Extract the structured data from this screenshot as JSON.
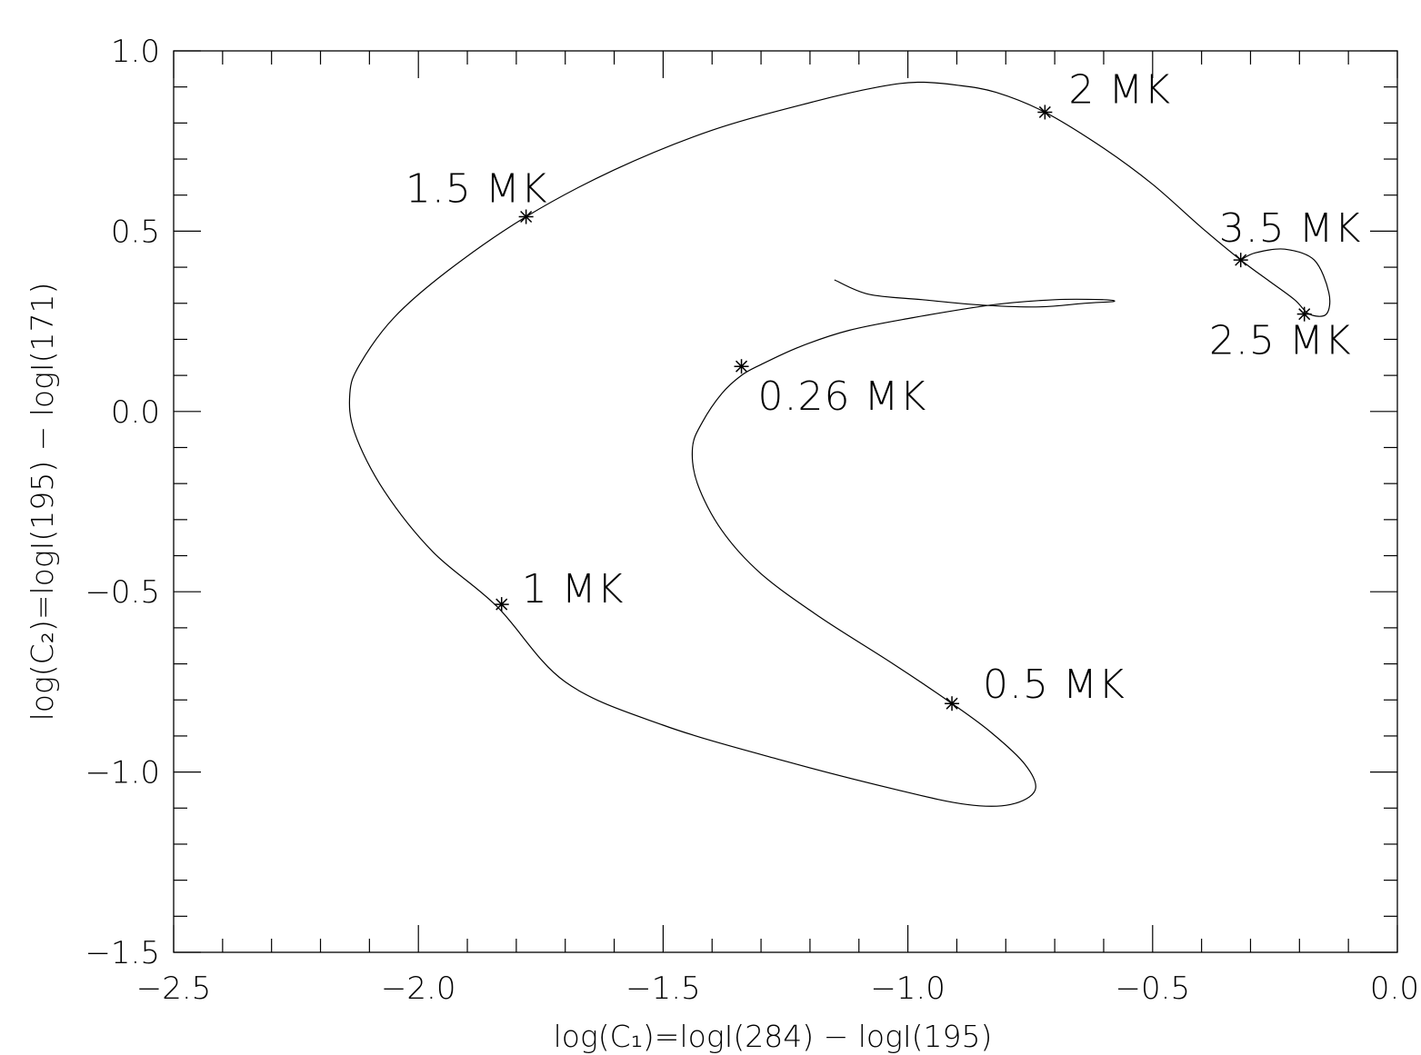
{
  "chart_data": {
    "type": "line",
    "title": "",
    "xlabel": "log(C₁)=logI(284) − logI(195)",
    "ylabel": "log(C₂)=logI(195) − logI(171)",
    "xlim": [
      -2.5,
      0.0
    ],
    "ylim": [
      -1.5,
      1.0
    ],
    "grid": false,
    "x_ticks": [
      -2.5,
      -2.0,
      -1.5,
      -1.0,
      -0.5,
      0.0
    ],
    "x_tick_labels": [
      "−2.5",
      "−2.0",
      "−1.5",
      "−1.0",
      "−0.5",
      "0.0"
    ],
    "y_ticks": [
      -1.5,
      -1.0,
      -0.5,
      0.0,
      0.5,
      1.0
    ],
    "y_tick_labels": [
      "−1.5",
      "−1.0",
      "−0.5",
      "0.0",
      "0.5",
      "1.0"
    ],
    "x_minor_step": 0.1,
    "y_minor_step": 0.1,
    "series": [
      {
        "x": [
          -1.15,
          -1.08,
          -0.97,
          -0.85,
          -0.73,
          -0.64,
          -0.58,
          -0.6,
          -0.7,
          -0.83,
          -0.99,
          -1.12,
          -1.22,
          -1.3,
          -1.34,
          -1.38,
          -1.42,
          -1.44,
          -1.43,
          -1.38,
          -1.3,
          -1.18,
          -1.03,
          -0.91,
          -0.83,
          -0.76,
          -0.74,
          -0.79,
          -0.88,
          -1.02,
          -1.25,
          -1.5,
          -1.7,
          -1.84,
          -1.97,
          -2.07,
          -2.13,
          -2.14,
          -2.12,
          -2.05,
          -1.94,
          -1.78,
          -1.6,
          -1.4,
          -1.19,
          -1.06,
          -0.98,
          -0.9,
          -0.82,
          -0.72,
          -0.6,
          -0.5,
          -0.4,
          -0.32,
          -0.26,
          -0.21,
          -0.18,
          -0.145,
          -0.14,
          -0.17,
          -0.23,
          -0.29,
          -0.32
        ],
        "y": [
          0.365,
          0.325,
          0.31,
          0.295,
          0.29,
          0.3,
          0.305,
          0.31,
          0.31,
          0.295,
          0.26,
          0.225,
          0.18,
          0.13,
          0.1,
          0.05,
          -0.03,
          -0.1,
          -0.2,
          -0.33,
          -0.45,
          -0.57,
          -0.7,
          -0.81,
          -0.89,
          -0.98,
          -1.05,
          -1.09,
          -1.09,
          -1.05,
          -0.97,
          -0.87,
          -0.75,
          -0.54,
          -0.39,
          -0.22,
          -0.06,
          0.05,
          0.13,
          0.26,
          0.39,
          0.54,
          0.67,
          0.78,
          0.86,
          0.9,
          0.913,
          0.905,
          0.885,
          0.83,
          0.73,
          0.63,
          0.51,
          0.42,
          0.36,
          0.31,
          0.27,
          0.27,
          0.33,
          0.42,
          0.45,
          0.44,
          0.42
        ]
      }
    ],
    "points": [
      {
        "label": "0.26 MK",
        "x": -1.34,
        "y": 0.125
      },
      {
        "label": "0.5 MK",
        "x": -0.91,
        "y": -0.81
      },
      {
        "label": "1 MK",
        "x": -1.83,
        "y": -0.535
      },
      {
        "label": "1.5 MK",
        "x": -1.78,
        "y": 0.54
      },
      {
        "label": "2 MK",
        "x": -0.72,
        "y": 0.83
      },
      {
        "label": "2.5 MK",
        "x": -0.19,
        "y": 0.27
      },
      {
        "label": "3.5 MK",
        "x": -0.32,
        "y": 0.42
      }
    ]
  }
}
